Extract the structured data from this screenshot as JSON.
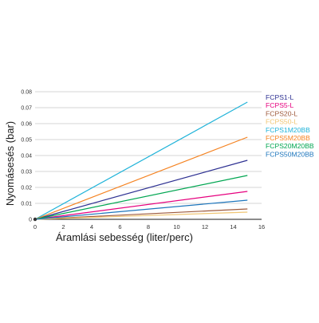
{
  "chart_data": {
    "type": "line",
    "xlabel": "Áramlási sebesség (liter/perc)",
    "ylabel": "Nyomásesés (bar)",
    "xlim": [
      0,
      16
    ],
    "ylim": [
      0,
      0.08
    ],
    "x_ticks": [
      "0",
      "2",
      "4",
      "6",
      "8",
      "10",
      "12",
      "14",
      "16"
    ],
    "y_ticks": [
      "0",
      "0.01",
      "0.02",
      "0.03",
      "0.04",
      "0.05",
      "0.06",
      "0.07",
      "0.08"
    ],
    "grid": "horizontal",
    "legend_position": "right",
    "series": [
      {
        "name": "FCPS1-L",
        "color": "#2e3192",
        "x": [
          0,
          15
        ],
        "y": [
          0,
          0.037
        ]
      },
      {
        "name": "FCPS5-L",
        "color": "#e6007e",
        "x": [
          0,
          15
        ],
        "y": [
          0,
          0.0175
        ]
      },
      {
        "name": "FCPS20-L",
        "color": "#9e5a3c",
        "x": [
          0,
          15
        ],
        "y": [
          0,
          0.0065
        ]
      },
      {
        "name": "FCPS50-L",
        "color": "#f0c674",
        "x": [
          0,
          15
        ],
        "y": [
          0,
          0.0045
        ]
      },
      {
        "name": "FCPS1M20BB",
        "color": "#1fb3d9",
        "x": [
          0,
          15
        ],
        "y": [
          0,
          0.0735
        ]
      },
      {
        "name": "FCPS5M20BB",
        "color": "#f58220",
        "x": [
          0,
          15
        ],
        "y": [
          0,
          0.0515
        ]
      },
      {
        "name": "FCPS20M20BB",
        "color": "#00a651",
        "x": [
          0,
          15
        ],
        "y": [
          0,
          0.0275
        ]
      },
      {
        "name": "FCPS50M20BB",
        "color": "#1c75bc",
        "x": [
          0,
          15
        ],
        "y": [
          0,
          0.012
        ]
      }
    ]
  }
}
